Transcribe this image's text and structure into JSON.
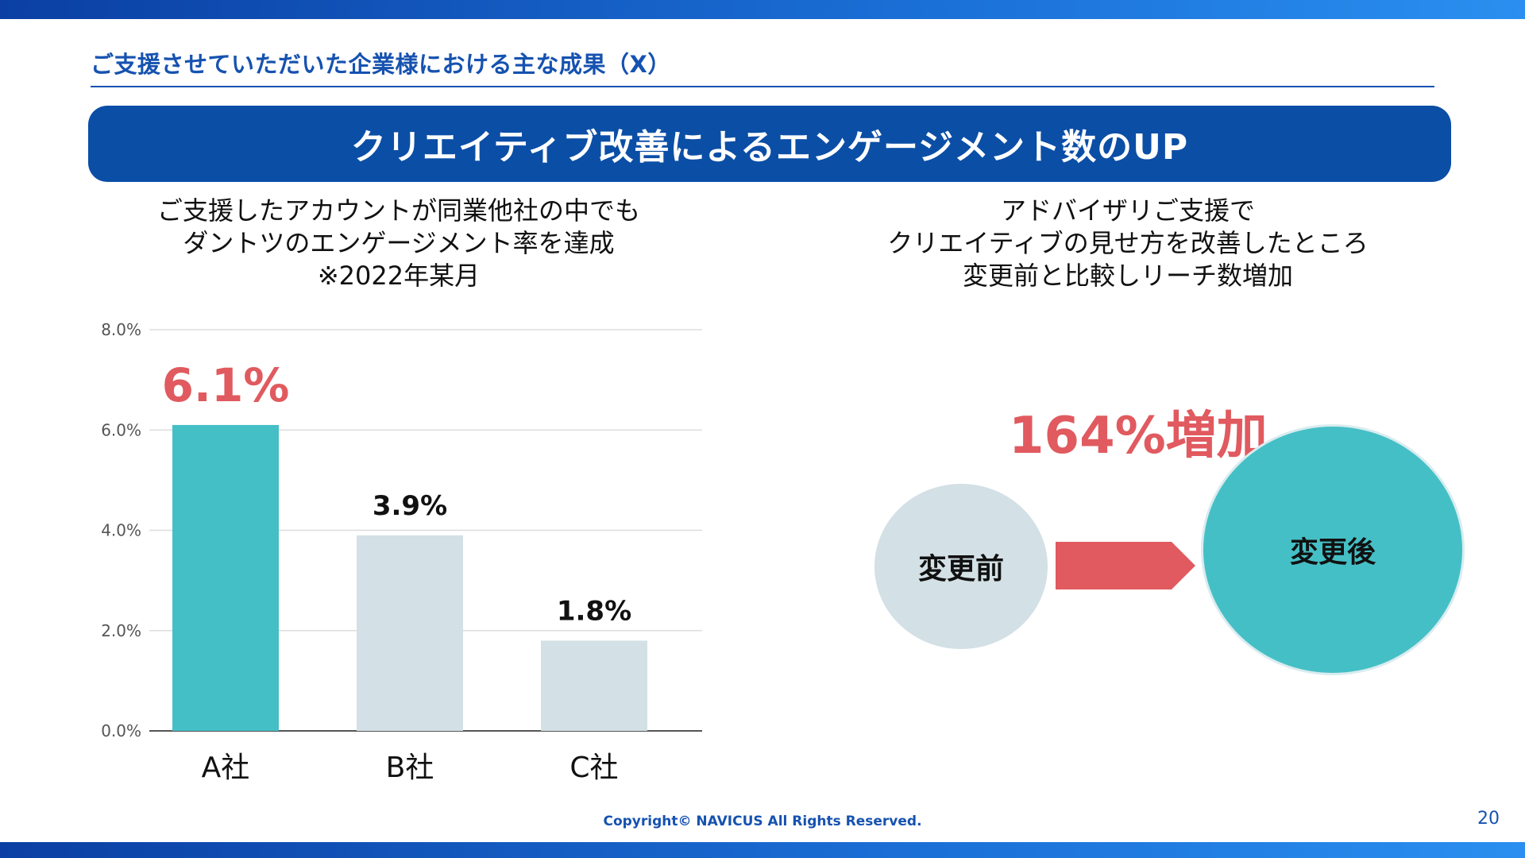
{
  "theme": {
    "accent": "#0b4ea6",
    "highlight": "#e05a5f",
    "teal": "#45bfc6",
    "grey": "#d3e0e5"
  },
  "header": {
    "section_title": "ご支援させていただいた企業様における主な成果（X）",
    "banner_title": "クリエイティブ改善によるエンゲージメント数のUP"
  },
  "left_panel": {
    "description_lines": [
      "ご支援したアカウントが同業他社の中でも",
      "ダントツのエンゲージメント率を達成",
      "※2022年某月"
    ]
  },
  "right_panel": {
    "description_lines": [
      "アドバイザリご支援で",
      "クリエイティブの見せ方を改善したところ",
      "変更前と比較しリーチ数増加"
    ],
    "increase_label": "164%増加",
    "before_label": "変更前",
    "after_label": "変更後",
    "arrow_icon": "right-arrow-icon"
  },
  "chart_data": {
    "type": "bar",
    "categories": [
      "A社",
      "B社",
      "C社"
    ],
    "values": [
      6.1,
      3.9,
      1.8
    ],
    "data_labels": [
      "6.1%",
      "3.9%",
      "1.8%"
    ],
    "y_ticks": [
      "0.0%",
      "2.0%",
      "4.0%",
      "6.0%",
      "8.0%"
    ],
    "ylim": [
      0,
      8
    ],
    "grid": true,
    "bar_colors": [
      "#45bfc6",
      "#d3e0e5",
      "#d3e0e5"
    ],
    "label_colors": [
      "#e05a5f",
      "#111111",
      "#111111"
    ]
  },
  "footer": {
    "copyright": "Copyright© NAVICUS All Rights Reserved.",
    "page_number": "20"
  }
}
